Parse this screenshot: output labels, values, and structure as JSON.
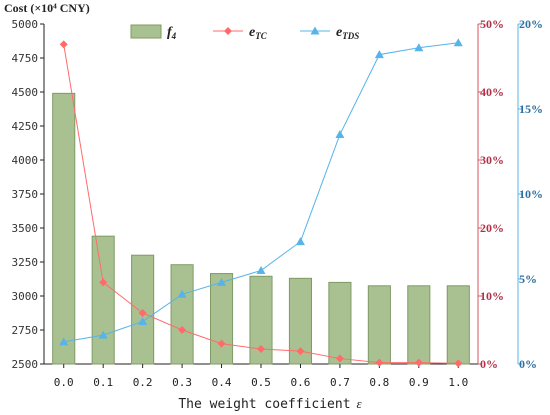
{
  "chart_data": {
    "type": "bar+line",
    "ylabel_left": "Cost (×10⁴ CNY)",
    "xlabel": "The weight coefficient",
    "xlabel_symbol": "ε",
    "categories": [
      "0.0",
      "0.1",
      "0.2",
      "0.3",
      "0.4",
      "0.5",
      "0.6",
      "0.7",
      "0.8",
      "0.9",
      "1.0"
    ],
    "y_left": {
      "range": [
        2500,
        5000
      ],
      "ticks": [
        2500,
        2750,
        3000,
        3250,
        3500,
        3750,
        4000,
        4250,
        4500,
        4750,
        5000
      ]
    },
    "y_right_red": {
      "range": [
        0,
        50
      ],
      "ticks": [
        "0%",
        "10%",
        "20%",
        "30%",
        "40%",
        "50%"
      ],
      "values": [
        0,
        10,
        20,
        30,
        40,
        50
      ]
    },
    "y_right_blue": {
      "range": [
        0,
        20
      ],
      "ticks": [
        "0%",
        "5%",
        "10%",
        "15%",
        "20%"
      ],
      "values": [
        0,
        5,
        10,
        15,
        20
      ]
    },
    "series": [
      {
        "name_main": "f",
        "name_sub": "4",
        "kind": "bar",
        "axis": "left",
        "color": "#a9c191",
        "stroke": "#7f9a66",
        "values": [
          4490,
          3440,
          3300,
          3230,
          3165,
          3145,
          3130,
          3100,
          3075,
          3075,
          3075
        ]
      },
      {
        "name_main": "e",
        "name_sub": "TC",
        "kind": "line",
        "axis": "right_red",
        "color": "#ff6b6b",
        "marker": "diamond",
        "values": [
          47,
          12,
          7.5,
          5,
          3,
          2.2,
          1.9,
          0.8,
          0.2,
          0.2,
          0.1
        ]
      },
      {
        "name_main": "e",
        "name_sub": "TDS",
        "kind": "line",
        "axis": "right_blue",
        "color": "#56b4e9",
        "marker": "triangle",
        "values": [
          1.3,
          1.7,
          2.5,
          4.1,
          4.8,
          5.5,
          7.2,
          13.5,
          18.2,
          18.6,
          18.9
        ]
      }
    ]
  }
}
